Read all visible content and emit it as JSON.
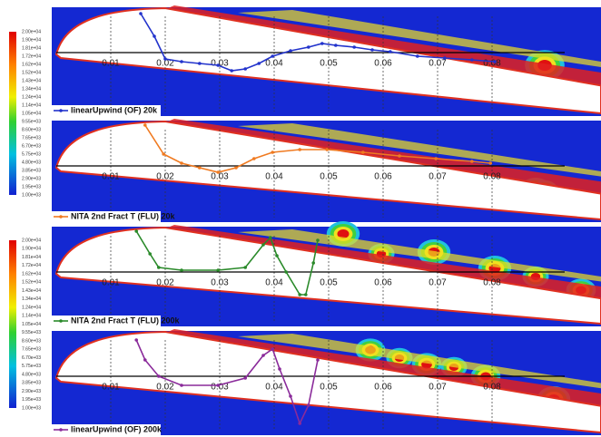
{
  "chart_data": [
    {
      "type": "line",
      "legend": "lower left",
      "xlim": [
        0,
        0.1
      ],
      "ylim": [
        -1.3,
        1
      ],
      "xticks": [
        0.01,
        0.02,
        0.03,
        0.04,
        0.05,
        0.06,
        0.07,
        0.08
      ],
      "series": [
        {
          "name": "linearUpwind (OF) 20k",
          "color": "#2233cc",
          "x": [
            0.0155,
            0.018,
            0.02,
            0.023,
            0.0263,
            0.0297,
            0.0322,
            0.0347,
            0.0372,
            0.0397,
            0.043,
            0.0463,
            0.0488,
            0.0513,
            0.0547,
            0.058,
            0.0613,
            0.0663,
            0.0713,
            0.0763,
            0.0805
          ],
          "values": [
            0.86,
            0.36,
            -0.14,
            -0.2,
            -0.24,
            -0.28,
            -0.4,
            -0.36,
            -0.24,
            -0.08,
            0.04,
            0.12,
            0.2,
            0.16,
            0.12,
            0.06,
            0.02,
            -0.08,
            -0.12,
            -0.16,
            -0.2
          ]
        }
      ]
    },
    {
      "type": "line",
      "legend": "lower left",
      "xlim": [
        0,
        0.1
      ],
      "ylim": [
        -1.3,
        1
      ],
      "xticks": [
        0.01,
        0.02,
        0.03,
        0.04,
        0.05,
        0.06,
        0.07,
        0.08
      ],
      "series": [
        {
          "name": "NITA 2nd Fract T (FLU) 20k",
          "color": "#f07a20",
          "x": [
            0.0163,
            0.0197,
            0.023,
            0.0263,
            0.0297,
            0.033,
            0.0363,
            0.0397,
            0.0447,
            0.0497,
            0.0563,
            0.063,
            0.0697,
            0.0763,
            0.0797
          ],
          "values": [
            0.9,
            0.26,
            0.06,
            -0.04,
            -0.14,
            -0.04,
            0.16,
            0.3,
            0.36,
            0.36,
            0.3,
            0.22,
            0.16,
            0.1,
            0.06
          ]
        }
      ]
    },
    {
      "type": "line",
      "legend": "lower left",
      "xlim": [
        0,
        0.1
      ],
      "ylim": [
        -1.3,
        1
      ],
      "xticks": [
        0.01,
        0.02,
        0.03,
        0.04,
        0.05,
        0.06,
        0.07,
        0.08
      ],
      "series": [
        {
          "name": "NITA 2nd Fract T (FLU) 200k",
          "color": "#2a8a2a",
          "x": [
            0.0147,
            0.0172,
            0.0188,
            0.023,
            0.0297,
            0.0347,
            0.038,
            0.0393,
            0.0405,
            0.0422,
            0.0447,
            0.0458,
            0.0472,
            0.048
          ],
          "values": [
            0.9,
            0.4,
            0.1,
            0.04,
            0.04,
            0.1,
            0.6,
            0.76,
            0.36,
            0,
            -0.5,
            -0.5,
            0.2,
            0.7
          ]
        }
      ]
    },
    {
      "type": "line",
      "legend": "lower left",
      "xlim": [
        0,
        0.1
      ],
      "ylim": [
        -1.3,
        1
      ],
      "xticks": [
        0.01,
        0.02,
        0.03,
        0.04,
        0.05,
        0.06,
        0.07,
        0.08
      ],
      "series": [
        {
          "name": "linearUpwind (OF) 200k",
          "color": "#8a2a9a",
          "x": [
            0.0147,
            0.0163,
            0.0188,
            0.023,
            0.0297,
            0.0347,
            0.038,
            0.0397,
            0.041,
            0.043,
            0.0447,
            0.0463,
            0.048
          ],
          "values": [
            0.8,
            0.36,
            0,
            -0.2,
            -0.2,
            -0.04,
            0.46,
            0.6,
            0.16,
            -0.44,
            -1.04,
            -0.64,
            0.36
          ]
        }
      ]
    }
  ],
  "colorbars": [
    {
      "labels": [
        "2.00e+04",
        "1.90e+04",
        "1.81e+04",
        "1.72e+04",
        "1.62e+04",
        "1.52e+04",
        "1.43e+04",
        "1.34e+04",
        "1.24e+04",
        "1.14e+04",
        "1.05e+04",
        "9.55e+03",
        "8.60e+03",
        "7.65e+03",
        "6.70e+03",
        "5.75e+03",
        "4.80e+03",
        "3.85e+03",
        "2.90e+03",
        "1.95e+03",
        "1.00e+03"
      ]
    },
    {
      "labels": [
        "2.00e+04",
        "1.90e+04",
        "1.81e+04",
        "1.72e+04",
        "1.62e+04",
        "1.52e+04",
        "1.43e+04",
        "1.34e+04",
        "1.24e+04",
        "1.14e+04",
        "1.05e+04",
        "9.55e+03",
        "8.60e+03",
        "7.65e+03",
        "6.70e+03",
        "5.75e+03",
        "4.80e+03",
        "3.85e+03",
        "2.90e+03",
        "1.95e+03",
        "1.00e+03"
      ]
    }
  ]
}
